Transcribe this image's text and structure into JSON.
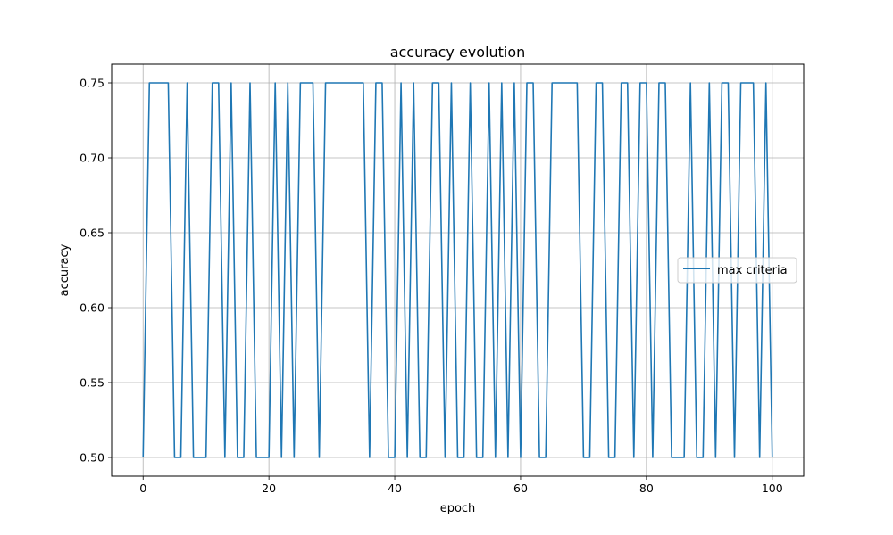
{
  "chart_data": {
    "type": "line",
    "title": "accuracy evolution",
    "xlabel": "epoch",
    "ylabel": "accuracy",
    "xlim": [
      -5,
      105
    ],
    "ylim": [
      0.4875,
      0.7625
    ],
    "xticks": [
      0,
      20,
      40,
      60,
      80,
      100
    ],
    "yticks": [
      0.5,
      0.55,
      0.6,
      0.65,
      0.7,
      0.75
    ],
    "ytick_labels": [
      "0.50",
      "0.55",
      "0.60",
      "0.65",
      "0.70",
      "0.75"
    ],
    "grid": true,
    "legend_position": "center-right",
    "series": [
      {
        "name": "max criteria",
        "color": "#1f77b4",
        "x": [
          0,
          1,
          2,
          3,
          4,
          5,
          6,
          7,
          8,
          9,
          10,
          11,
          12,
          13,
          14,
          15,
          16,
          17,
          18,
          19,
          20,
          21,
          22,
          23,
          24,
          25,
          26,
          27,
          28,
          29,
          30,
          31,
          32,
          33,
          34,
          35,
          36,
          37,
          38,
          39,
          40,
          41,
          42,
          43,
          44,
          45,
          46,
          47,
          48,
          49,
          50,
          51,
          52,
          53,
          54,
          55,
          56,
          57,
          58,
          59,
          60,
          61,
          62,
          63,
          64,
          65,
          66,
          67,
          68,
          69,
          70,
          71,
          72,
          73,
          74,
          75,
          76,
          77,
          78,
          79,
          80,
          81,
          82,
          83,
          84,
          85,
          86,
          87,
          88,
          89,
          90,
          91,
          92,
          93,
          94,
          95,
          96,
          97,
          98,
          99,
          100
        ],
        "y": [
          0.5,
          0.75,
          0.75,
          0.75,
          0.75,
          0.5,
          0.5,
          0.75,
          0.5,
          0.5,
          0.5,
          0.75,
          0.75,
          0.5,
          0.75,
          0.5,
          0.5,
          0.75,
          0.5,
          0.5,
          0.5,
          0.75,
          0.5,
          0.75,
          0.5,
          0.75,
          0.75,
          0.75,
          0.5,
          0.75,
          0.75,
          0.75,
          0.75,
          0.75,
          0.75,
          0.75,
          0.5,
          0.75,
          0.75,
          0.5,
          0.5,
          0.75,
          0.5,
          0.75,
          0.5,
          0.5,
          0.75,
          0.75,
          0.5,
          0.75,
          0.5,
          0.5,
          0.75,
          0.5,
          0.5,
          0.75,
          0.5,
          0.75,
          0.5,
          0.75,
          0.5,
          0.75,
          0.75,
          0.5,
          0.5,
          0.75,
          0.75,
          0.75,
          0.75,
          0.75,
          0.5,
          0.5,
          0.75,
          0.75,
          0.5,
          0.5,
          0.75,
          0.75,
          0.5,
          0.75,
          0.75,
          0.5,
          0.75,
          0.75,
          0.5,
          0.5,
          0.5,
          0.75,
          0.5,
          0.5,
          0.75,
          0.5,
          0.75,
          0.75,
          0.5,
          0.75,
          0.75,
          0.75,
          0.5,
          0.75,
          0.5
        ]
      }
    ]
  }
}
